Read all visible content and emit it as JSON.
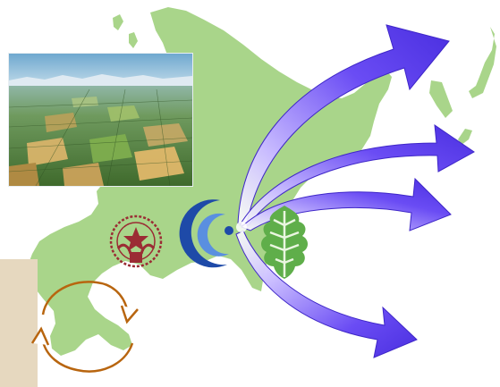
{
  "colors": {
    "land": "#a9d58a",
    "land_edge": "#9ccc7c",
    "arrow": "#5b3cf0",
    "arrow_light": "#b6a6ff",
    "panel": "#e6d8bf",
    "cycle_arrow": "#b8650f",
    "emblem": "#9b2c34",
    "crescent": "#1e4aa8",
    "leaf": "#5fae4a"
  },
  "icons": {
    "photo": "aerial-farmland-photo",
    "university_emblem": "university-emblem-icon",
    "crescent_logo": "crescent-logo-icon",
    "oak_leaf_logo": "oak-leaf-logo-icon",
    "cycle": "cycle-arrows-icon",
    "outgoing_arrows": "outgoing-arrow-icon"
  }
}
